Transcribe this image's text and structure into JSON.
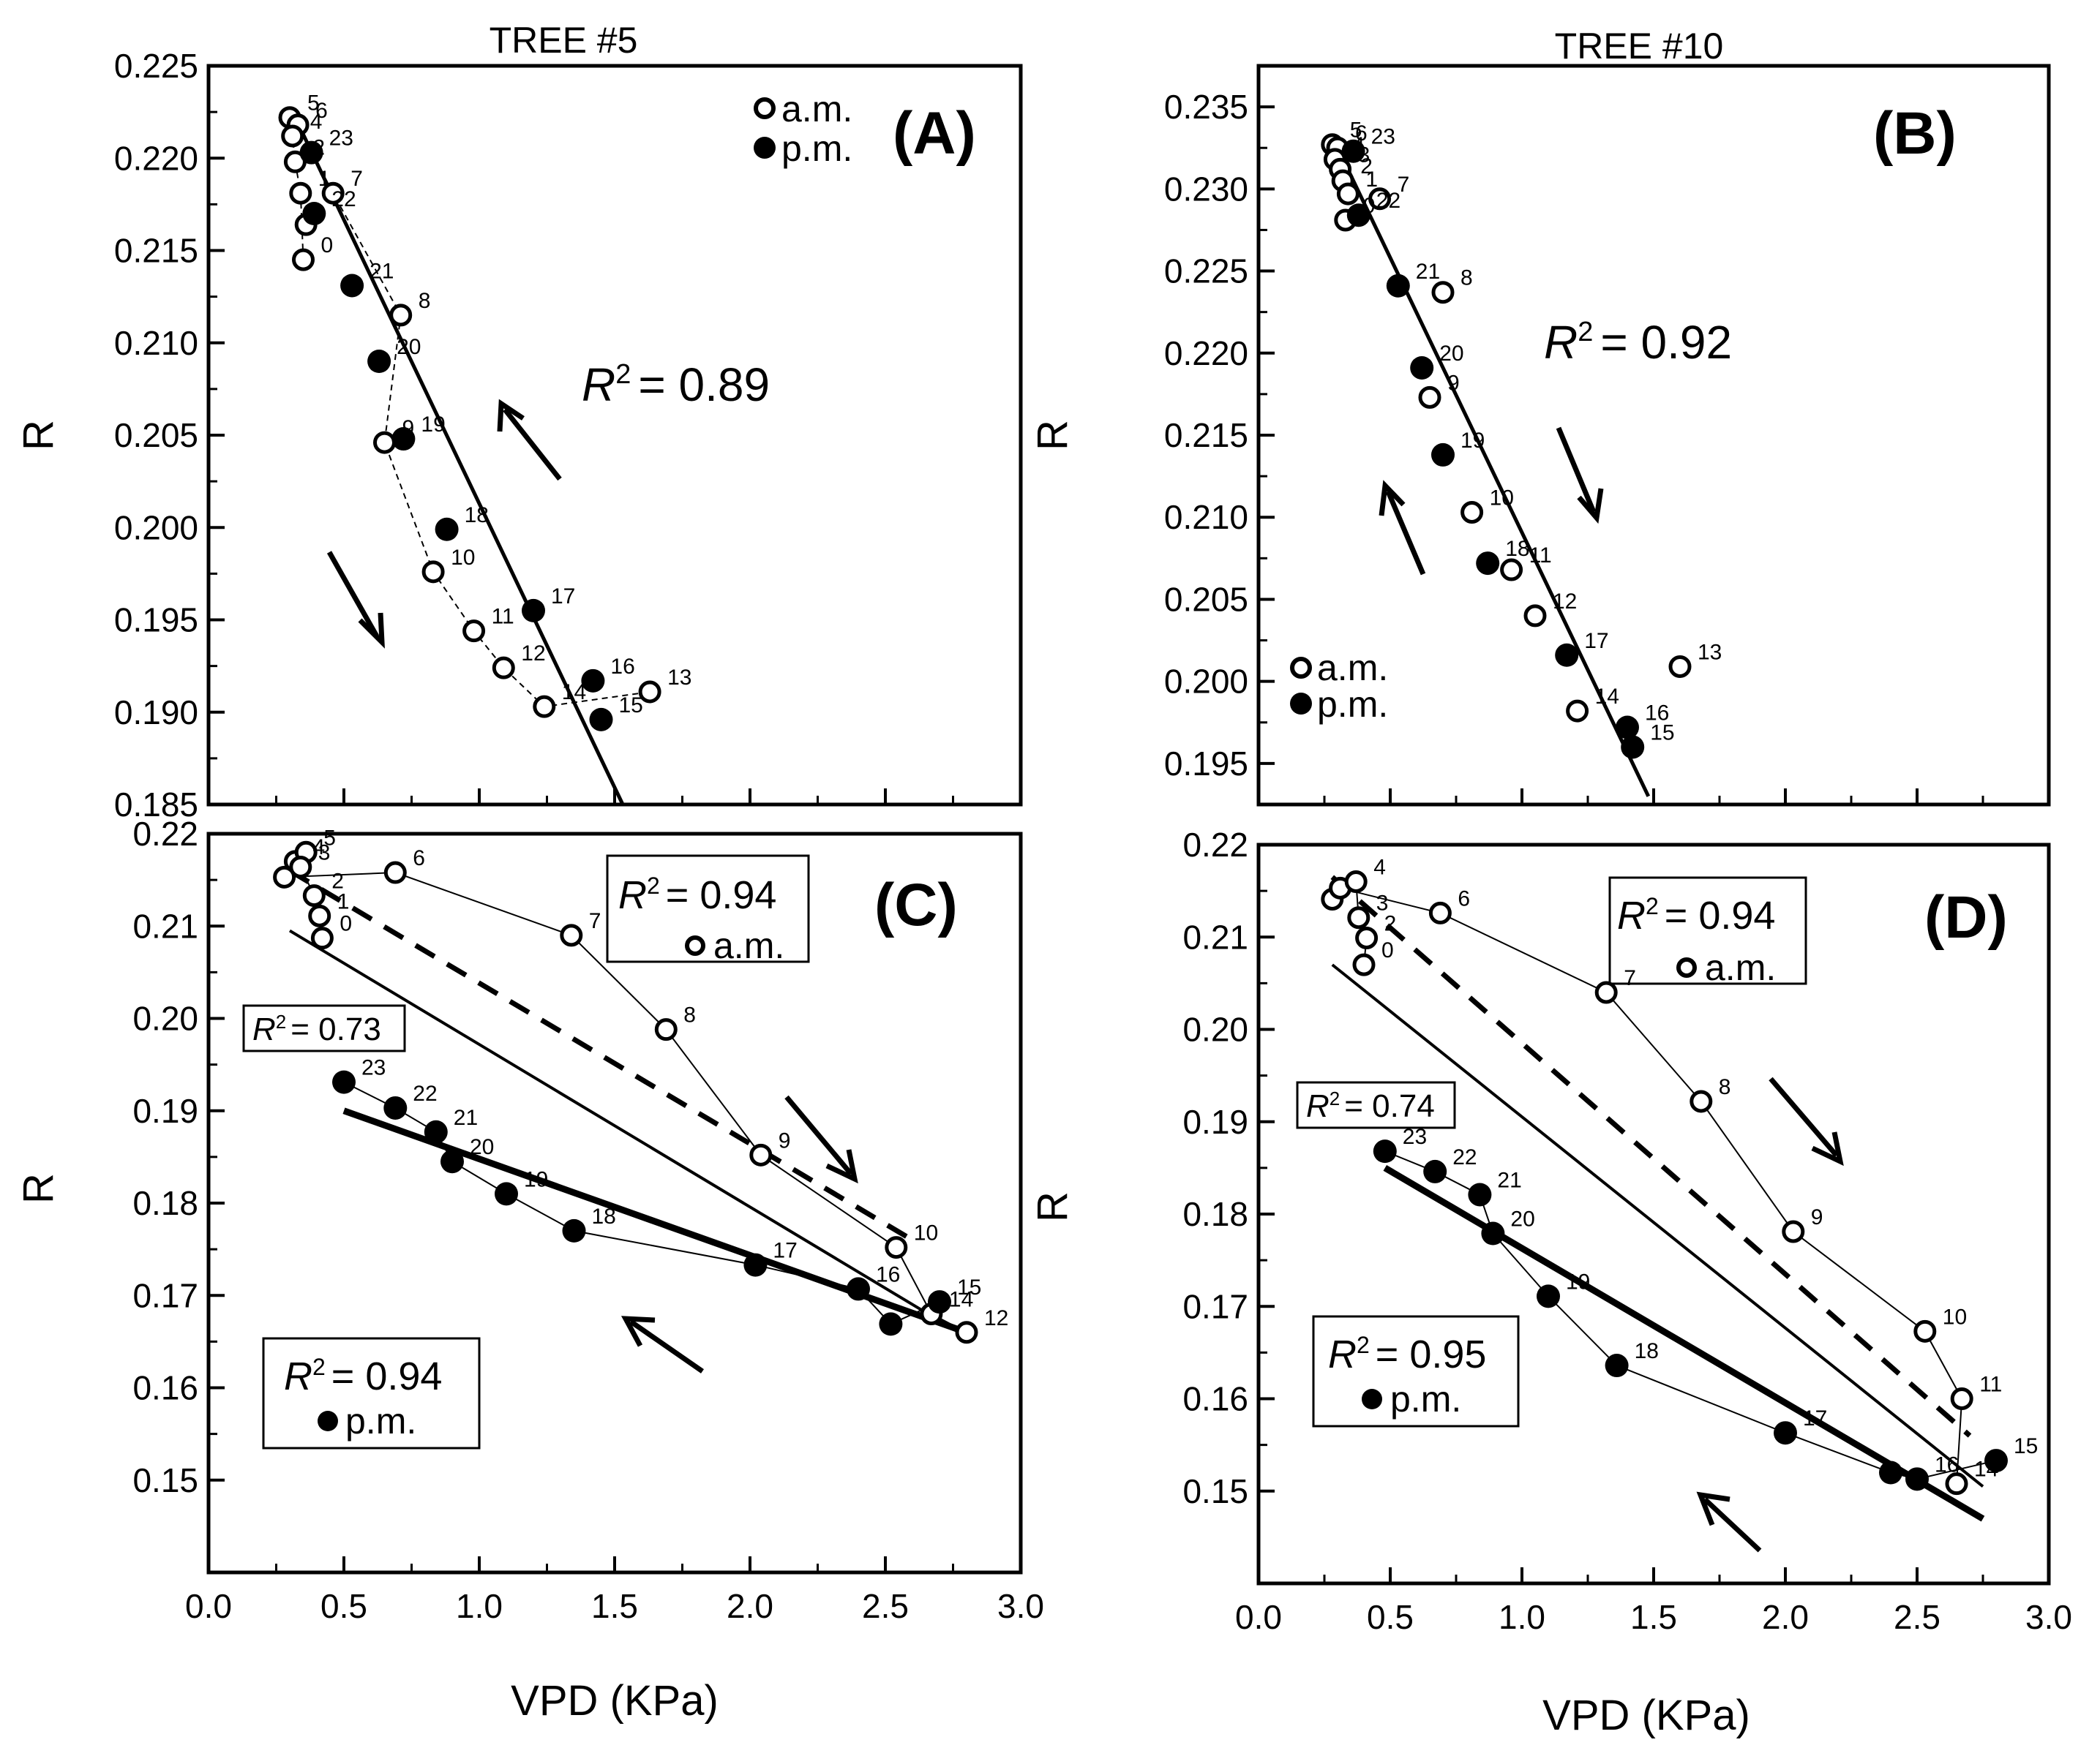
{
  "figure": {
    "panels": [
      {
        "id": "A",
        "tag": "(A)",
        "title": "TREE #5",
        "ylabel": "R",
        "xlabel": "",
        "r2_label": "= 0.89",
        "legend": {
          "am": "a.m.",
          "pm": "p.m."
        }
      },
      {
        "id": "B",
        "tag": "(B)",
        "title": "TREE #10",
        "ylabel": "R",
        "xlabel": "",
        "r2_label": "= 0.92",
        "legend": {
          "am": "a.m.",
          "pm": "p.m."
        }
      },
      {
        "id": "C",
        "tag": "(C)",
        "title": "",
        "ylabel": "R",
        "xlabel": "VPD (KPa)",
        "r2_am": "= 0.94",
        "r2_pm": "= 0.94",
        "r2_all": "= 0.73",
        "legend": {
          "am": "a.m.",
          "pm": "p.m."
        }
      },
      {
        "id": "D",
        "tag": "(D)",
        "title": "",
        "ylabel": "R",
        "xlabel": "VPD (KPa)",
        "r2_am": "= 0.94",
        "r2_pm": "= 0.95",
        "r2_all": "= 0.74",
        "legend": {
          "am": "a.m.",
          "pm": "p.m."
        }
      }
    ]
  },
  "chart_data": [
    {
      "panel": "A",
      "type": "scatter",
      "title": "TREE #5",
      "xlabel": "",
      "ylabel": "R",
      "xlim": [
        0,
        3
      ],
      "ylim": [
        0.185,
        0.225
      ],
      "x_ticks": [],
      "y_ticks": [
        "0.185",
        "0.190",
        "0.195",
        "0.200",
        "0.205",
        "0.210",
        "0.215",
        "0.220",
        "0.225"
      ],
      "annotations": {
        "r2": "= 0.89"
      },
      "series": [
        {
          "name": "a.m.",
          "points": [
            {
              "x": 0.3,
              "y": 0.2222,
              "label": "5"
            },
            {
              "x": 0.33,
              "y": 0.2218,
              "label": "6"
            },
            {
              "x": 0.31,
              "y": 0.2212,
              "label": "4"
            },
            {
              "x": 0.32,
              "y": 0.2198,
              "label": "2"
            },
            {
              "x": 0.34,
              "y": 0.2181,
              "label": "1"
            },
            {
              "x": 0.36,
              "y": 0.2164,
              "label": ""
            },
            {
              "x": 0.35,
              "y": 0.2145,
              "label": "0"
            },
            {
              "x": 0.46,
              "y": 0.2181,
              "label": "7"
            },
            {
              "x": 0.71,
              "y": 0.2115,
              "label": "8"
            },
            {
              "x": 0.65,
              "y": 0.2046,
              "label": "9"
            },
            {
              "x": 0.83,
              "y": 0.1976,
              "label": "10"
            },
            {
              "x": 0.98,
              "y": 0.1944,
              "label": "11"
            },
            {
              "x": 1.09,
              "y": 0.1924,
              "label": "12"
            },
            {
              "x": 1.24,
              "y": 0.1903,
              "label": "14"
            },
            {
              "x": 1.63,
              "y": 0.1911,
              "label": "13"
            }
          ]
        },
        {
          "name": "p.m.",
          "points": [
            {
              "x": 0.38,
              "y": 0.2203,
              "label": "23"
            },
            {
              "x": 0.39,
              "y": 0.217,
              "label": "22"
            },
            {
              "x": 0.53,
              "y": 0.2131,
              "label": "21"
            },
            {
              "x": 0.63,
              "y": 0.209,
              "label": "20"
            },
            {
              "x": 0.72,
              "y": 0.2048,
              "label": "19"
            },
            {
              "x": 0.88,
              "y": 0.1999,
              "label": "18"
            },
            {
              "x": 1.2,
              "y": 0.1955,
              "label": "17"
            },
            {
              "x": 1.42,
              "y": 0.1917,
              "label": "16"
            },
            {
              "x": 1.45,
              "y": 0.1896,
              "label": "15"
            }
          ]
        }
      ]
    },
    {
      "panel": "B",
      "type": "scatter",
      "title": "TREE #10",
      "xlabel": "",
      "ylabel": "R",
      "xlim": [
        0,
        3
      ],
      "ylim": [
        0.1925,
        0.2375
      ],
      "x_ticks": [],
      "y_ticks": [
        "0.195",
        "0.200",
        "0.205",
        "0.210",
        "0.215",
        "0.220",
        "0.225",
        "0.230",
        "0.235"
      ],
      "annotations": {
        "r2": "= 0.92"
      },
      "series": [
        {
          "name": "a.m.",
          "points": [
            {
              "x": 0.28,
              "y": 0.2327,
              "label": "5"
            },
            {
              "x": 0.3,
              "y": 0.2325,
              "label": "6"
            },
            {
              "x": 0.29,
              "y": 0.2318,
              "label": "4"
            },
            {
              "x": 0.31,
              "y": 0.2312,
              "label": "3"
            },
            {
              "x": 0.32,
              "y": 0.2305,
              "label": "2"
            },
            {
              "x": 0.34,
              "y": 0.2297,
              "label": "1"
            },
            {
              "x": 0.33,
              "y": 0.2281,
              "label": "0"
            },
            {
              "x": 0.46,
              "y": 0.2294,
              "label": "7"
            },
            {
              "x": 0.7,
              "y": 0.2237,
              "label": "8"
            },
            {
              "x": 0.65,
              "y": 0.2173,
              "label": "9"
            },
            {
              "x": 0.81,
              "y": 0.2103,
              "label": "10"
            },
            {
              "x": 0.96,
              "y": 0.2068,
              "label": "11"
            },
            {
              "x": 1.05,
              "y": 0.204,
              "label": "12"
            },
            {
              "x": 1.21,
              "y": 0.1982,
              "label": "14"
            },
            {
              "x": 1.6,
              "y": 0.2009,
              "label": "13"
            }
          ]
        },
        {
          "name": "p.m.",
          "points": [
            {
              "x": 0.36,
              "y": 0.2323,
              "label": "23"
            },
            {
              "x": 0.38,
              "y": 0.2284,
              "label": "22"
            },
            {
              "x": 0.53,
              "y": 0.2241,
              "label": "21"
            },
            {
              "x": 0.62,
              "y": 0.2191,
              "label": "20"
            },
            {
              "x": 0.7,
              "y": 0.2138,
              "label": "19"
            },
            {
              "x": 0.87,
              "y": 0.2072,
              "label": "18"
            },
            {
              "x": 1.17,
              "y": 0.2016,
              "label": "17"
            },
            {
              "x": 1.4,
              "y": 0.1972,
              "label": "16"
            },
            {
              "x": 1.42,
              "y": 0.196,
              "label": "15"
            }
          ]
        }
      ]
    },
    {
      "panel": "C",
      "type": "scatter",
      "title": "",
      "xlabel": "VPD (KPa)",
      "ylabel": "R",
      "xlim": [
        0,
        3
      ],
      "ylim": [
        0.14,
        0.22
      ],
      "x_ticks": [
        "0.0",
        "0.5",
        "1.0",
        "1.5",
        "2.0",
        "2.5",
        "3.0"
      ],
      "y_ticks": [
        "0.15",
        "0.16",
        "0.17",
        "0.18",
        "0.19",
        "0.20",
        "0.21",
        "0.22"
      ],
      "annotations": {
        "r2_am": "= 0.94",
        "r2_pm": "= 0.94",
        "r2_all": "= 0.73"
      },
      "series": [
        {
          "name": "a.m.",
          "points": [
            {
              "x": 0.28,
              "y": 0.2153,
              "label": ""
            },
            {
              "x": 0.32,
              "y": 0.217,
              "label": "4"
            },
            {
              "x": 0.36,
              "y": 0.218,
              "label": "5"
            },
            {
              "x": 0.34,
              "y": 0.2164,
              "label": "3"
            },
            {
              "x": 0.39,
              "y": 0.2133,
              "label": "2"
            },
            {
              "x": 0.41,
              "y": 0.2111,
              "label": "1"
            },
            {
              "x": 0.42,
              "y": 0.2087,
              "label": "0"
            },
            {
              "x": 0.69,
              "y": 0.2158,
              "label": "6"
            },
            {
              "x": 1.34,
              "y": 0.209,
              "label": "7"
            },
            {
              "x": 1.69,
              "y": 0.1988,
              "label": "8"
            },
            {
              "x": 2.04,
              "y": 0.1852,
              "label": "9"
            },
            {
              "x": 2.54,
              "y": 0.1752,
              "label": "10"
            },
            {
              "x": 2.67,
              "y": 0.168,
              "label": "14"
            },
            {
              "x": 2.8,
              "y": 0.166,
              "label": "12"
            }
          ]
        },
        {
          "name": "p.m.",
          "points": [
            {
              "x": 0.5,
              "y": 0.1931,
              "label": "23"
            },
            {
              "x": 0.69,
              "y": 0.1903,
              "label": "22"
            },
            {
              "x": 0.84,
              "y": 0.1877,
              "label": "21"
            },
            {
              "x": 0.9,
              "y": 0.1845,
              "label": "20"
            },
            {
              "x": 1.1,
              "y": 0.181,
              "label": "19"
            },
            {
              "x": 1.35,
              "y": 0.177,
              "label": "18"
            },
            {
              "x": 2.02,
              "y": 0.1733,
              "label": "17"
            },
            {
              "x": 2.4,
              "y": 0.1707,
              "label": "16"
            },
            {
              "x": 2.52,
              "y": 0.1669,
              "label": ""
            },
            {
              "x": 2.7,
              "y": 0.1693,
              "label": "15"
            }
          ]
        }
      ]
    },
    {
      "panel": "D",
      "type": "scatter",
      "title": "",
      "xlabel": "VPD (KPa)",
      "ylabel": "R",
      "xlim": [
        0,
        3
      ],
      "ylim": [
        0.14,
        0.22
      ],
      "x_ticks": [
        "0.0",
        "0.5",
        "1.0",
        "1.5",
        "2.0",
        "2.5",
        "3.0"
      ],
      "y_ticks": [
        "0.15",
        "0.16",
        "0.17",
        "0.18",
        "0.19",
        "0.20",
        "0.21",
        "0.22"
      ],
      "annotations": {
        "r2_am": "= 0.94",
        "r2_pm": "= 0.95",
        "r2_all": "= 0.74"
      },
      "series": [
        {
          "name": "a.m.",
          "points": [
            {
              "x": 0.28,
              "y": 0.2141,
              "label": ""
            },
            {
              "x": 0.31,
              "y": 0.2153,
              "label": ""
            },
            {
              "x": 0.37,
              "y": 0.216,
              "label": "4"
            },
            {
              "x": 0.38,
              "y": 0.2121,
              "label": "3"
            },
            {
              "x": 0.41,
              "y": 0.2099,
              "label": "2"
            },
            {
              "x": 0.4,
              "y": 0.207,
              "label": "0"
            },
            {
              "x": 0.69,
              "y": 0.2126,
              "label": "6"
            },
            {
              "x": 1.32,
              "y": 0.204,
              "label": "7"
            },
            {
              "x": 1.68,
              "y": 0.1922,
              "label": "8"
            },
            {
              "x": 2.03,
              "y": 0.1781,
              "label": "9"
            },
            {
              "x": 2.53,
              "y": 0.1673,
              "label": "10"
            },
            {
              "x": 2.67,
              "y": 0.16,
              "label": "11"
            },
            {
              "x": 2.65,
              "y": 0.1508,
              "label": "14"
            }
          ]
        },
        {
          "name": "p.m.",
          "points": [
            {
              "x": 0.48,
              "y": 0.1868,
              "label": "23"
            },
            {
              "x": 0.67,
              "y": 0.1846,
              "label": "22"
            },
            {
              "x": 0.84,
              "y": 0.1821,
              "label": "21"
            },
            {
              "x": 0.89,
              "y": 0.1779,
              "label": "20"
            },
            {
              "x": 1.1,
              "y": 0.1711,
              "label": "19"
            },
            {
              "x": 1.36,
              "y": 0.1636,
              "label": "18"
            },
            {
              "x": 2.0,
              "y": 0.1563,
              "label": "17"
            },
            {
              "x": 2.4,
              "y": 0.152,
              "label": ""
            },
            {
              "x": 2.5,
              "y": 0.1513,
              "label": "16"
            },
            {
              "x": 2.8,
              "y": 0.1533,
              "label": "15"
            }
          ]
        }
      ]
    }
  ]
}
